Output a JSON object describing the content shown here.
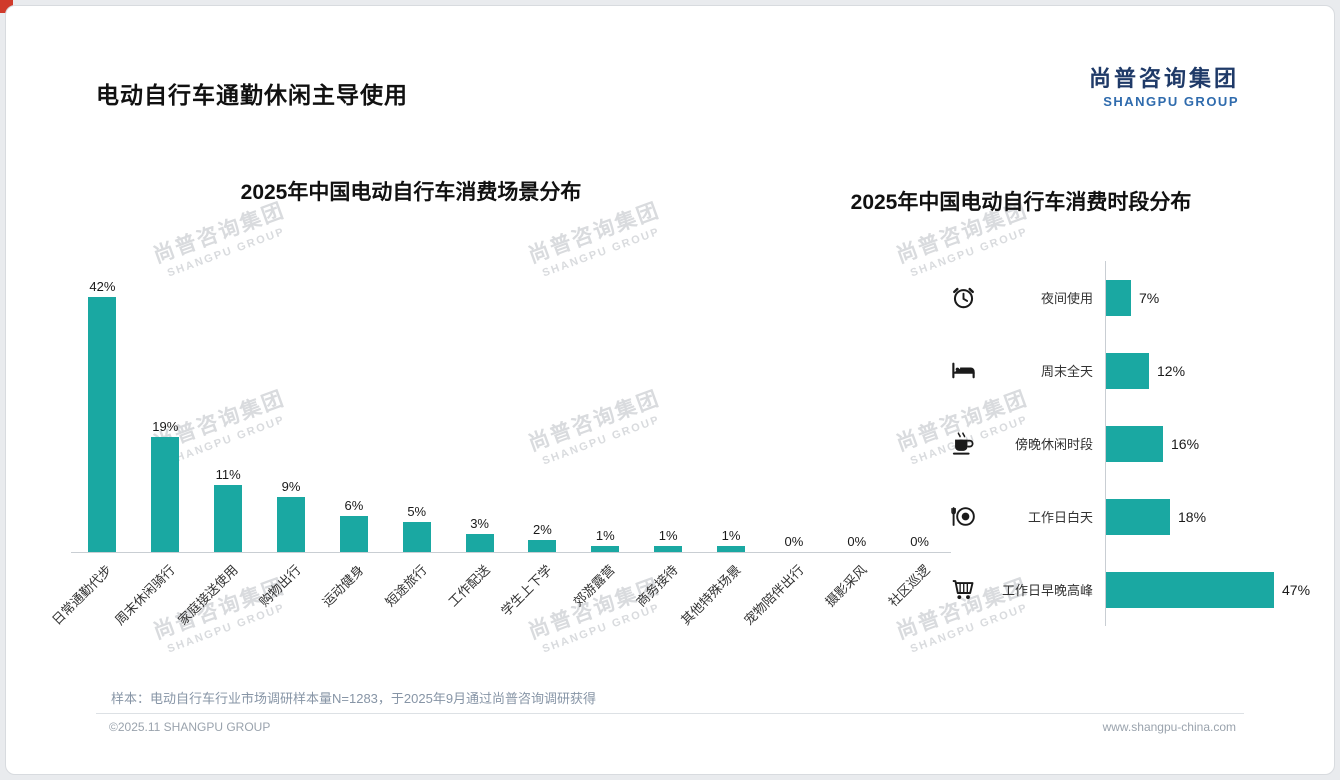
{
  "header": {
    "title": "电动自行车通勤休闲主导使用",
    "logo": {
      "cn": "尚普咨询集团",
      "en": "SHANGPU GROUP"
    }
  },
  "watermark": {
    "line1": "尚普咨询集团",
    "line2": "SHANGPU GROUP"
  },
  "footer": {
    "sample_note": "样本：电动自行车行业市场调研样本量N=1283，于2025年9月通过尚普咨询调研获得",
    "copyright": "©2025.11 SHANGPU GROUP",
    "website": "www.shangpu-china.com"
  },
  "colors": {
    "accent": "#1aa8a2",
    "logo_cn": "#1f3a68",
    "logo_en": "#2f6bad",
    "watermark": "#d9dbde"
  },
  "chart_data": [
    {
      "type": "bar",
      "orientation": "vertical",
      "title": "2025年中国电动自行车消费场景分布",
      "categories": [
        "日常通勤代步",
        "周末休闲骑行",
        "家庭接送使用",
        "购物出行",
        "运动健身",
        "短途旅行",
        "工作配送",
        "学生上下学",
        "郊游露营",
        "商务接待",
        "其他特殊场景",
        "宠物陪伴出行",
        "摄影采风",
        "社区巡逻"
      ],
      "values": [
        42,
        19,
        11,
        9,
        6,
        5,
        3,
        2,
        1,
        1,
        1,
        0,
        0,
        0
      ],
      "unit": "%",
      "bar_color": "#1aa8a2",
      "ylim": [
        0,
        45
      ],
      "grid": false,
      "value_labels": true
    },
    {
      "type": "bar",
      "orientation": "horizontal",
      "title": "2025年中国电动自行车消费时段分布",
      "categories": [
        "夜间使用",
        "周末全天",
        "傍晚休闲时段",
        "工作日白天",
        "工作日早晚高峰"
      ],
      "values": [
        7,
        12,
        16,
        18,
        47
      ],
      "icons": [
        "alarm-clock",
        "bed",
        "coffee",
        "dining",
        "shopping-cart"
      ],
      "unit": "%",
      "bar_color": "#1aa8a2",
      "xlim": [
        0,
        50
      ],
      "grid": false,
      "value_labels": true
    }
  ]
}
